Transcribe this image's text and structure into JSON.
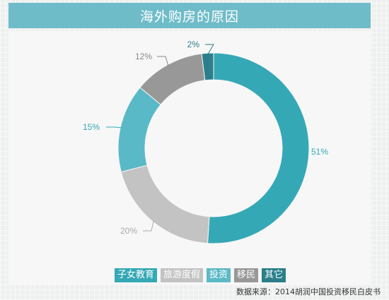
{
  "title": "海外购房的原因",
  "source_note": "数据来源：2014胡润中国投资移民白皮书",
  "chart_data": {
    "type": "pie",
    "donut": true,
    "title": "海外购房的原因",
    "categories": [
      "子女教育",
      "旅游度假",
      "投资",
      "移民",
      "其它"
    ],
    "values": [
      51,
      20,
      15,
      12,
      2
    ],
    "labels": [
      "51%",
      "20%",
      "15%",
      "12%",
      "2%"
    ],
    "colors": [
      "#35a8b6",
      "#c3c3c3",
      "#5ab9c6",
      "#989898",
      "#2a7f8a"
    ],
    "label_colors": [
      "#35a8b6",
      "#aaaaaa",
      "#35a8b6",
      "#888888",
      "#2a7f8a"
    ],
    "legend_position": "bottom",
    "start_angle_deg": 0,
    "direction": "clockwise"
  }
}
